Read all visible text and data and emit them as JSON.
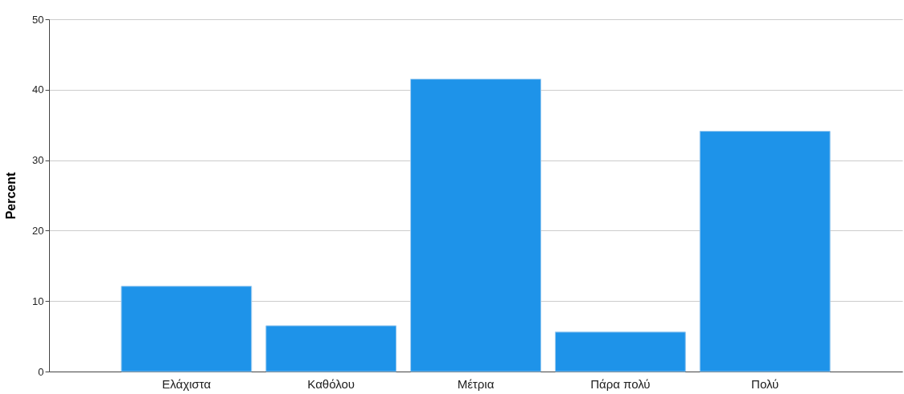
{
  "chart_data": {
    "type": "bar",
    "ylabel": "Percent",
    "categories": [
      "Ελάχιστα",
      "Καθόλου",
      "Μέτρια",
      "Πάρα πολύ",
      "Πολύ"
    ],
    "values": [
      12.1,
      6.5,
      41.5,
      5.6,
      34.1
    ],
    "color": "#1e93e9",
    "ylim": [
      0,
      50
    ],
    "yticks": [
      0,
      10,
      20,
      30,
      40,
      50
    ],
    "grid": "y"
  }
}
